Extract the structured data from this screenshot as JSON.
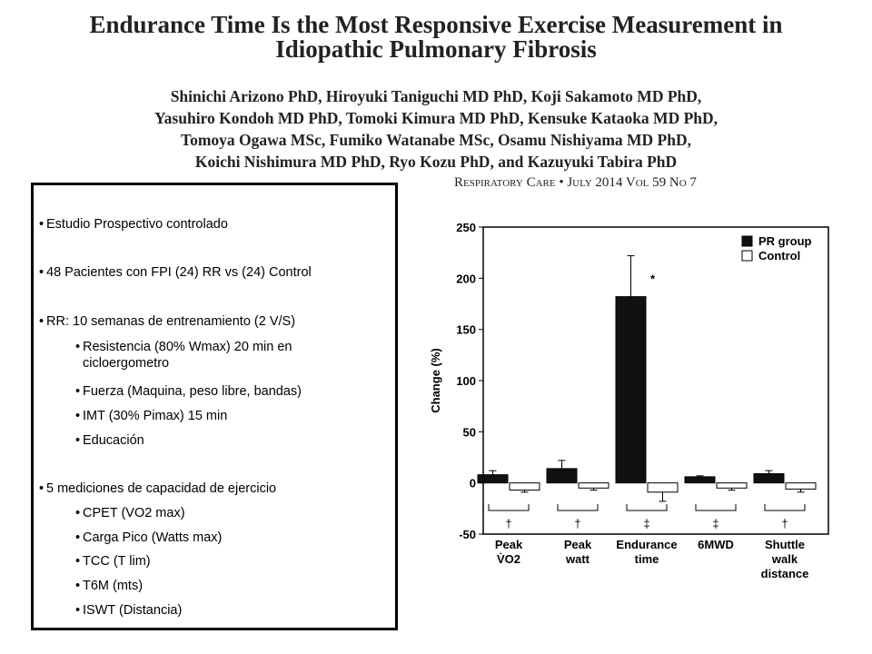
{
  "header": {
    "title_lines": [
      "Endurance Time Is the Most Responsive Exercise Measurement in",
      "Idiopathic Pulmonary Fibrosis"
    ],
    "author_lines": [
      "Shinichi Arizono PhD, Hiroyuki Taniguchi MD PhD, Koji Sakamoto MD PhD,",
      "Yasuhiro Kondoh MD PhD, Tomoki Kimura MD PhD, Kensuke Kataoka MD PhD,",
      "Tomoya Ogawa MSc, Fumiko Watanabe MSc, Osamu Nishiyama MD PhD,",
      "Koichi Nishimura MD PhD, Ryo Kozu PhD, and Kazuyuki Tabira PhD"
    ],
    "journal": "Respiratory Care • July 2014 Vol 59 No 7"
  },
  "bullets": [
    {
      "text": "Estudio Prospectivo controlado",
      "level": 1
    },
    {
      "text": "48 Pacientes con FPI (24) RR vs (24) Control",
      "level": 1
    },
    {
      "text": "RR:  10 semanas de entrenamiento  (2 V/S)",
      "level": 1
    },
    {
      "text": "Resistencia (80% Wmax) 20 min en cicloergometro",
      "level": 2
    },
    {
      "text": "Fuerza (Maquina, peso libre, bandas)",
      "level": 2
    },
    {
      "text": "IMT (30% Pimax) 15 min",
      "level": 2
    },
    {
      "text": "Educación",
      "level": 2
    },
    {
      "text": "5 mediciones de capacidad de ejercicio",
      "level": 1
    },
    {
      "text": "CPET (VO2 max)",
      "level": 2
    },
    {
      "text": "Carga Pico (Watts max)",
      "level": 2
    },
    {
      "text": "TCC (T lim)",
      "level": 2
    },
    {
      "text": "T6M (mts)",
      "level": 2
    },
    {
      "text": "ISWT (Distancia)",
      "level": 2
    }
  ],
  "chart_data": {
    "type": "bar",
    "y_label": "Change (%)",
    "categories": [
      [
        "Peak",
        "V̇O2"
      ],
      [
        "Peak",
        "watt"
      ],
      [
        "Endurance",
        "time"
      ],
      [
        "6MWD"
      ],
      [
        "Shuttle",
        "walk",
        "distance"
      ]
    ],
    "significance": [
      "†",
      "†",
      "‡",
      "‡",
      "†"
    ],
    "annotation": "*",
    "series": [
      {
        "name": "PR group",
        "color": "#111111",
        "values": [
          8,
          14,
          182,
          6,
          9
        ],
        "errors": [
          4,
          8,
          40,
          1,
          3
        ]
      },
      {
        "name": "Control",
        "color": "#ffffff",
        "values": [
          -7,
          -5,
          -9,
          -5,
          -6
        ],
        "errors": [
          2,
          2,
          9,
          2,
          3
        ]
      }
    ],
    "ylim": [
      -50,
      250
    ],
    "yticks": [
      -50,
      0,
      50,
      100,
      150,
      200,
      250
    ],
    "legend": "upper right"
  }
}
